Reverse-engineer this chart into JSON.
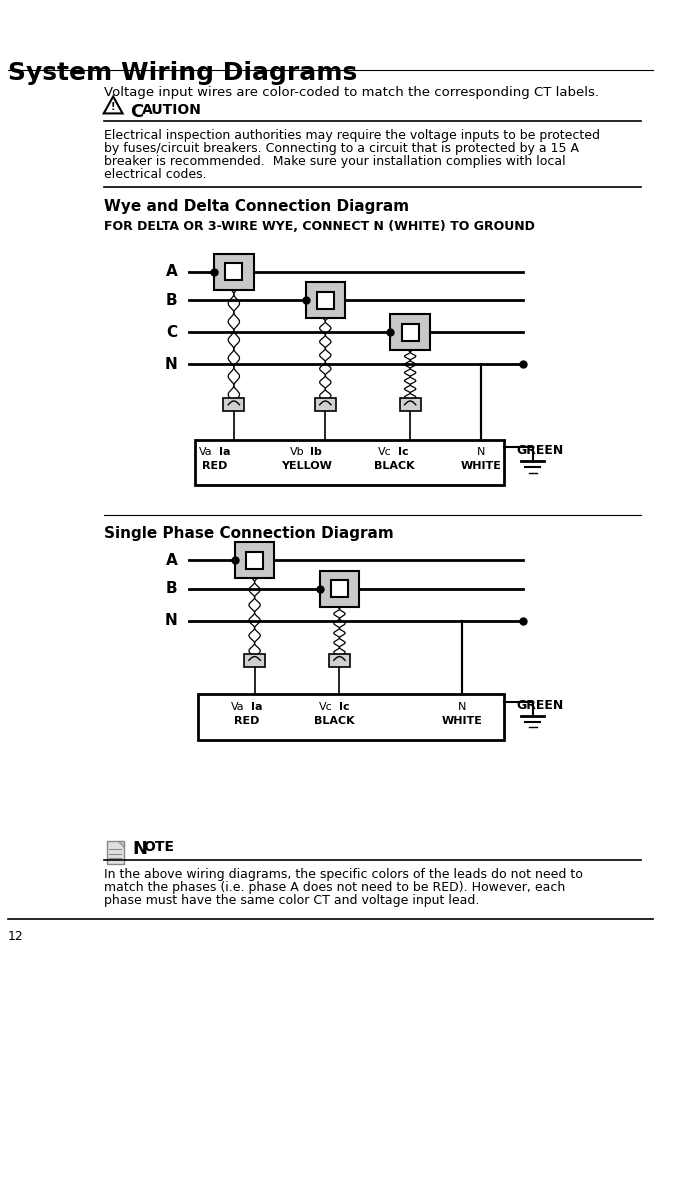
{
  "title": "System Wiring Diagrams",
  "subtitle": "Voltage input wires are color-coded to match the corresponding CT labels.",
  "caution_title": "CAUTION",
  "wye_title": "Wye and Delta Connection Diagram",
  "wye_subtitle": "FOR DELTA OR 3-WIRE WYE, CONNECT N (WHITE) TO GROUND",
  "single_title": "Single Phase Connection Diagram",
  "note_title": "NOTE",
  "page_number": "12",
  "bg_color": "#ffffff",
  "text_color": "#000000",
  "ct_fill": "#c8c8c8",
  "ct_inner_fill": "#ffffff",
  "caution_lines": [
    "Electrical inspection authorities may require the voltage inputs to be protected",
    "by fuses/circuit breakers. Connecting to a circuit that is protected by a 15 A",
    "breaker is recommended.  Make sure your installation complies with local",
    "electrical codes."
  ],
  "note_lines": [
    "In the above wiring diagrams, the specific colors of the leads do not need to",
    "match the phases (i.e. phase A does not need to be RED). However, each",
    "phase must have the same color CT and voltage input lead."
  ]
}
